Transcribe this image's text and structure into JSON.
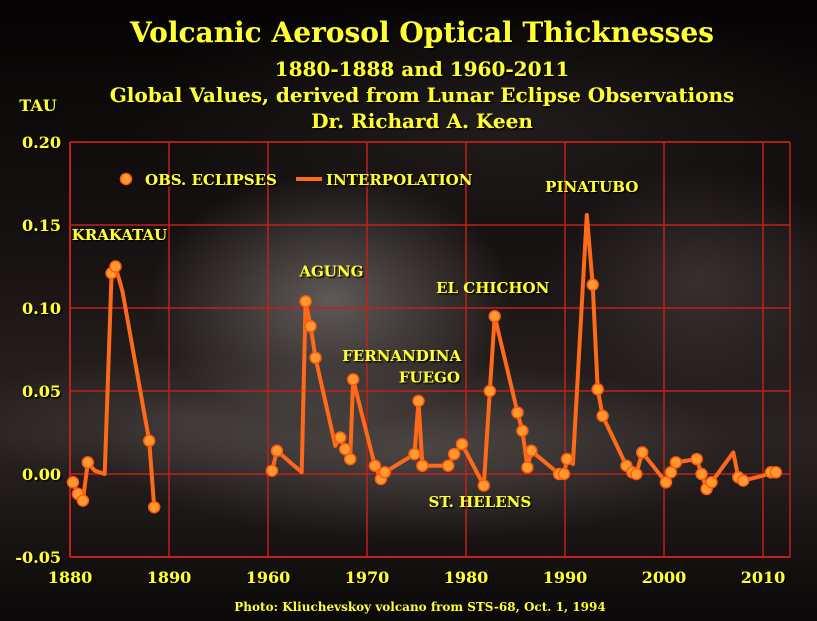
{
  "header": {
    "title": "Volcanic Aerosol Optical Thicknesses",
    "subtitle1": "1880-1888 and 1960-2011",
    "subtitle2": "Global Values, derived from Lunar Eclipse Observations",
    "author": "Dr. Richard A. Keen"
  },
  "footer": {
    "credit": "Photo:  Kliuchevskoy  volcano  from STS-68, Oct.  1, 1994"
  },
  "colors": {
    "title": "#ffff33",
    "line": "#ff6a1a",
    "marker_fill": "#ff9a2e",
    "marker_stroke": "#ff5a10",
    "grid": "#c0201a",
    "text": "#ffff33"
  },
  "chart_data": {
    "type": "line",
    "ylabel": "TAU",
    "xlabel": "",
    "xlim": [
      1880,
      2012
    ],
    "ylim": [
      -0.05,
      0.2
    ],
    "x_ticks": [
      1880,
      1890,
      1960,
      1970,
      1980,
      1990,
      2000,
      2010
    ],
    "x_tick_labels": [
      "1880",
      "1890",
      "1960",
      "1970",
      "1980",
      "1990",
      "2000",
      "2010"
    ],
    "y_ticks": [
      -0.05,
      0.0,
      0.05,
      0.1,
      0.15,
      0.2
    ],
    "y_tick_labels": [
      "-0.05",
      "0.00",
      "0.05",
      "0.10",
      "0.15",
      "0.20"
    ],
    "grid": true,
    "legend": {
      "placement": "top-left",
      "entries": [
        "OBS. ECLIPSES",
        "INTERPOLATION"
      ]
    },
    "series": [
      {
        "name": "INTERPOLATION",
        "kind": "line",
        "segments": [
          [
            [
              1880.3,
              -0.005
            ],
            [
              1880.8,
              -0.012
            ],
            [
              1881.3,
              -0.016
            ],
            [
              1881.8,
              0.007
            ],
            [
              1882.5,
              0.002
            ],
            [
              1883.5,
              0.0
            ],
            [
              1884.2,
              0.121
            ],
            [
              1884.6,
              0.125
            ],
            [
              1885.3,
              0.11
            ],
            [
              1888.0,
              0.02
            ],
            [
              1888.5,
              -0.02
            ]
          ],
          [
            [
              1960.4,
              0.002
            ],
            [
              1960.9,
              0.014
            ],
            [
              1963.4,
              0.001
            ],
            [
              1963.8,
              0.104
            ],
            [
              1964.3,
              0.089
            ],
            [
              1964.8,
              0.07
            ],
            [
              1966.8,
              0.017
            ],
            [
              1967.3,
              0.022
            ],
            [
              1967.8,
              0.015
            ],
            [
              1968.3,
              0.009
            ],
            [
              1968.6,
              0.057
            ],
            [
              1970.8,
              0.005
            ],
            [
              1971.4,
              -0.003
            ],
            [
              1971.8,
              0.001
            ],
            [
              1974.8,
              0.012
            ],
            [
              1975.2,
              0.044
            ],
            [
              1975.6,
              0.005
            ],
            [
              1978.2,
              0.005
            ],
            [
              1978.8,
              0.012
            ],
            [
              1979.6,
              0.018
            ],
            [
              1981.8,
              -0.007
            ],
            [
              1982.4,
              0.05
            ],
            [
              1982.9,
              0.095
            ],
            [
              1985.2,
              0.037
            ],
            [
              1985.7,
              0.026
            ],
            [
              1986.2,
              0.004
            ],
            [
              1986.6,
              0.014
            ],
            [
              1989.4,
              0.0
            ],
            [
              1989.9,
              0.0
            ],
            [
              1990.2,
              0.009
            ],
            [
              1990.8,
              0.006
            ],
            [
              1992.2,
              0.156
            ],
            [
              1992.8,
              0.114
            ],
            [
              1993.3,
              0.051
            ],
            [
              1993.8,
              0.035
            ],
            [
              1996.2,
              0.005
            ],
            [
              1996.8,
              0.001
            ],
            [
              1997.2,
              0.0
            ],
            [
              1997.8,
              0.013
            ],
            [
              2000.2,
              -0.005
            ],
            [
              2000.7,
              0.001
            ],
            [
              2001.2,
              0.007
            ],
            [
              2003.3,
              0.009
            ],
            [
              2003.8,
              0.0
            ],
            [
              2004.3,
              -0.009
            ],
            [
              2004.8,
              -0.005
            ],
            [
              2007.0,
              0.013
            ],
            [
              2007.5,
              -0.002
            ],
            [
              2008.0,
              -0.004
            ],
            [
              2010.0,
              -0.001
            ],
            [
              2010.8,
              0.001
            ],
            [
              2011.3,
              0.001
            ]
          ]
        ]
      },
      {
        "name": "OBS. ECLIPSES",
        "kind": "scatter",
        "points": [
          [
            1880.3,
            -0.005
          ],
          [
            1880.8,
            -0.012
          ],
          [
            1881.3,
            -0.016
          ],
          [
            1881.8,
            0.007
          ],
          [
            1884.2,
            0.121
          ],
          [
            1884.6,
            0.125
          ],
          [
            1888.0,
            0.02
          ],
          [
            1888.5,
            -0.02
          ],
          [
            1960.4,
            0.002
          ],
          [
            1960.9,
            0.014
          ],
          [
            1963.8,
            0.104
          ],
          [
            1964.3,
            0.089
          ],
          [
            1964.8,
            0.07
          ],
          [
            1967.3,
            0.022
          ],
          [
            1967.8,
            0.015
          ],
          [
            1968.3,
            0.009
          ],
          [
            1968.6,
            0.057
          ],
          [
            1970.8,
            0.005
          ],
          [
            1971.4,
            -0.003
          ],
          [
            1971.8,
            0.001
          ],
          [
            1974.8,
            0.012
          ],
          [
            1975.2,
            0.044
          ],
          [
            1975.6,
            0.005
          ],
          [
            1978.2,
            0.005
          ],
          [
            1978.8,
            0.012
          ],
          [
            1979.6,
            0.018
          ],
          [
            1981.8,
            -0.007
          ],
          [
            1982.4,
            0.05
          ],
          [
            1982.9,
            0.095
          ],
          [
            1985.2,
            0.037
          ],
          [
            1985.7,
            0.026
          ],
          [
            1986.2,
            0.004
          ],
          [
            1986.6,
            0.014
          ],
          [
            1989.4,
            0.0
          ],
          [
            1989.9,
            0.0
          ],
          [
            1990.2,
            0.009
          ],
          [
            1992.8,
            0.114
          ],
          [
            1993.3,
            0.051
          ],
          [
            1993.8,
            0.035
          ],
          [
            1996.2,
            0.005
          ],
          [
            1996.8,
            0.001
          ],
          [
            1997.2,
            0.0
          ],
          [
            1997.8,
            0.013
          ],
          [
            2000.2,
            -0.005
          ],
          [
            2000.7,
            0.001
          ],
          [
            2001.2,
            0.007
          ],
          [
            2003.3,
            0.009
          ],
          [
            2003.8,
            0.0
          ],
          [
            2004.3,
            -0.009
          ],
          [
            2004.8,
            -0.005
          ],
          [
            2007.5,
            -0.002
          ],
          [
            2008.0,
            -0.004
          ],
          [
            2010.8,
            0.001
          ],
          [
            2011.3,
            0.001
          ]
        ]
      }
    ],
    "annotations": [
      {
        "text": "KRAKATAU",
        "x": 1885.0,
        "y": 0.141
      },
      {
        "text": "AGUNG",
        "x": 1966.4,
        "y": 0.119
      },
      {
        "text": "FERNANDINA",
        "x": 1973.5,
        "y": 0.068
      },
      {
        "text": "FUEGO",
        "x": 1976.3,
        "y": 0.055
      },
      {
        "text": "EL CHICHON",
        "x": 1982.7,
        "y": 0.109
      },
      {
        "text": "ST. HELENS",
        "x": 1981.4,
        "y": -0.02
      },
      {
        "text": "PINATUBO",
        "x": 1992.7,
        "y": 0.17
      }
    ]
  }
}
